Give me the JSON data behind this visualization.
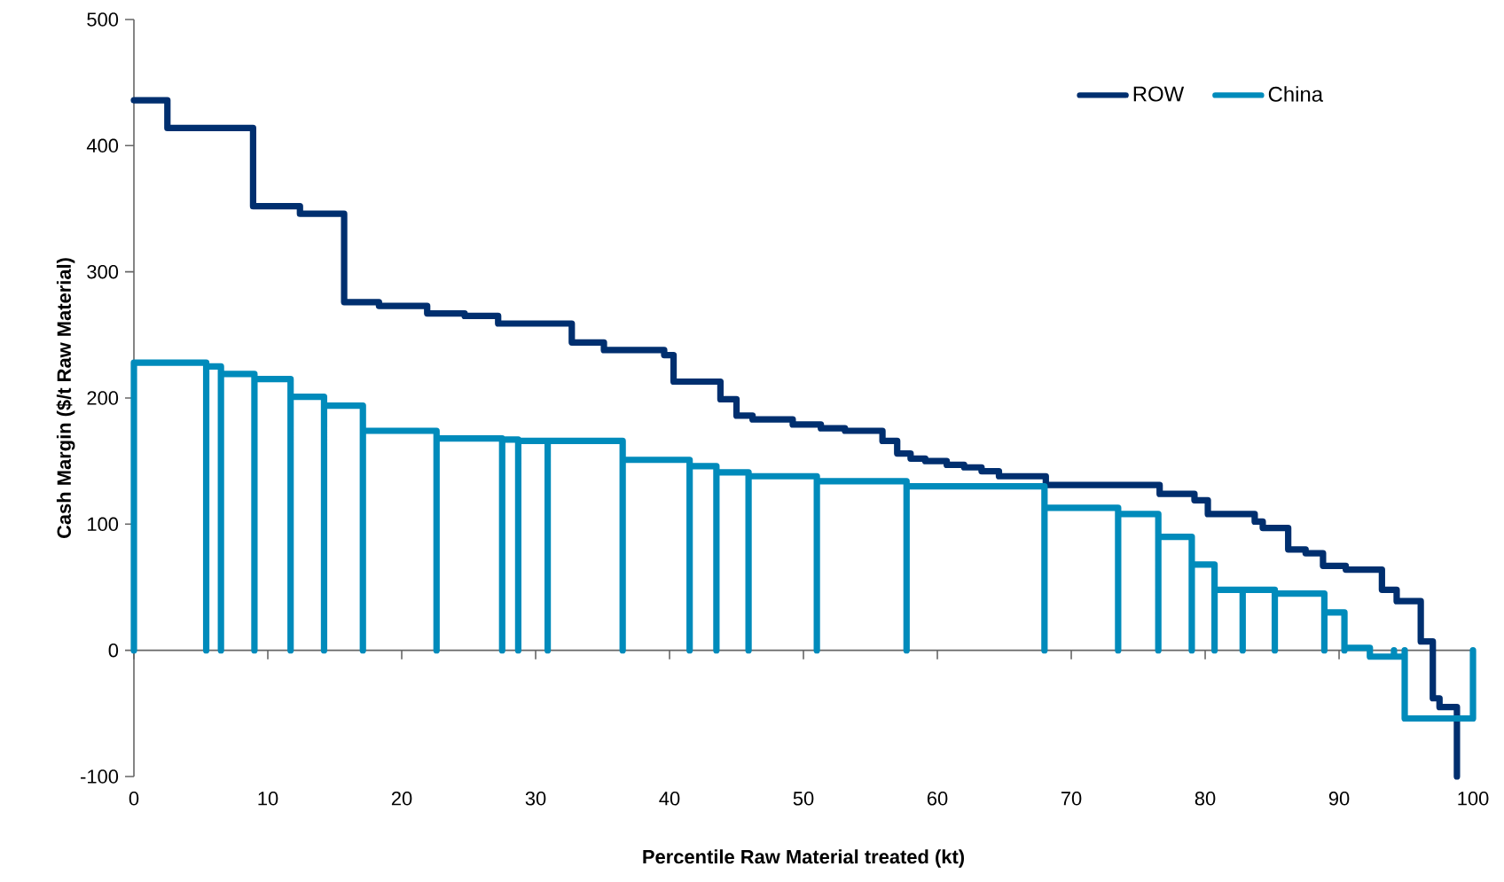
{
  "chart_data": {
    "type": "step",
    "xlabel": "Percentile Raw Material treated (kt)",
    "ylabel": "Cash Margin ($/t Raw Material)",
    "xlim": [
      0,
      100
    ],
    "ylim": [
      -100,
      500
    ],
    "xticks": [
      0,
      10,
      20,
      30,
      40,
      50,
      60,
      70,
      80,
      90,
      100
    ],
    "yticks": [
      -100,
      0,
      100,
      200,
      300,
      400,
      500
    ],
    "legend": "top right",
    "marker": "none",
    "line_style": "solid",
    "grid": false,
    "ref_lines": [
      {
        "axis": "y",
        "value": 0
      }
    ],
    "series": [
      {
        "name": "ROW",
        "color": "#002f6f",
        "x": [
          0,
          2.5,
          8.9,
          12.4,
          15.7,
          18.3,
          21.9,
          24.7,
          27.2,
          32.7,
          35.1,
          39.6,
          40.3,
          43.8,
          45.0,
          46.2,
          49.2,
          51.3,
          53.1,
          55.9,
          57.0,
          58.0,
          59.1,
          60.7,
          62.0,
          63.3,
          64.6,
          68.1,
          76.6,
          79.2,
          80.2,
          83.7,
          84.3,
          86.2,
          87.5,
          88.8,
          90.5,
          93.2,
          94.3,
          96.1,
          97.0,
          97.5,
          98.8
        ],
        "values": [
          436,
          414,
          352,
          346,
          276,
          273,
          267,
          265,
          259,
          244,
          238,
          234,
          213,
          199,
          186,
          183,
          179,
          176,
          174,
          166,
          156,
          152,
          150,
          147,
          145,
          142,
          138,
          131,
          124,
          119,
          108,
          102,
          97,
          80,
          77,
          67,
          64,
          48,
          39,
          7,
          -38,
          -45,
          -100
        ]
      },
      {
        "name": "China",
        "color": "#008bbb",
        "type": "line",
        "x": [
          0,
          0,
          5.4,
          5.4,
          5.4,
          6.5,
          6.5,
          6.5,
          9.0,
          9.0,
          9.0,
          11.7,
          11.7,
          11.7,
          14.2,
          14.2,
          14.2,
          17.1,
          17.1,
          17.1,
          22.6,
          22.6,
          22.6,
          27.5,
          27.5,
          27.5,
          28.7,
          28.7,
          28.7,
          30.9,
          30.9,
          30.9,
          36.5,
          36.5,
          36.5,
          41.5,
          41.5,
          41.5,
          43.5,
          43.5,
          43.5,
          45.9,
          45.9,
          45.9,
          51.0,
          51.0,
          51.0,
          57.7,
          57.7,
          57.7,
          68.0,
          68.0,
          68.0,
          73.5,
          73.5,
          73.5,
          76.5,
          76.5,
          76.5,
          79.0,
          79.0,
          79.0,
          80.7,
          80.7,
          80.7,
          82.8,
          82.8,
          82.8,
          85.2,
          85.2,
          85.2,
          88.9,
          88.9,
          88.9,
          90.4,
          90.4,
          90.4,
          92.3,
          92.3,
          92.3,
          94.1,
          94.1,
          94.1,
          94.9,
          94.9,
          94.9,
          100,
          100
        ],
        "values": [
          0,
          228,
          228,
          0,
          225,
          225,
          0,
          219,
          219,
          0,
          215,
          215,
          0,
          201,
          201,
          0,
          194,
          194,
          0,
          174,
          174,
          0,
          168,
          168,
          0,
          167,
          167,
          0,
          166,
          166,
          0,
          166,
          166,
          0,
          151,
          151,
          0,
          146,
          146,
          0,
          141,
          141,
          0,
          138,
          138,
          0,
          134,
          134,
          0,
          130,
          130,
          0,
          113,
          113,
          0,
          108,
          108,
          0,
          90,
          90,
          0,
          68,
          68,
          0,
          48,
          48,
          0,
          48,
          48,
          0,
          45,
          45,
          0,
          30,
          30,
          0,
          2,
          2,
          0,
          -5,
          -5,
          0,
          -5,
          -5,
          0,
          -54,
          -54,
          0
        ]
      }
    ]
  }
}
